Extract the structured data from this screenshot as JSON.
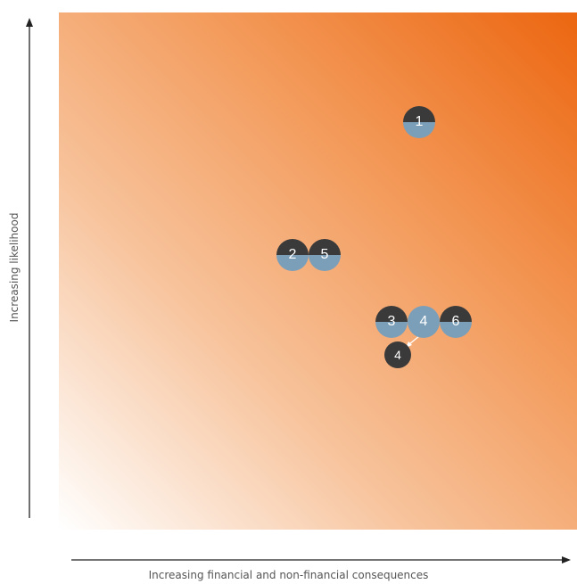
{
  "axes": {
    "y_label": "Increasing likelihood",
    "x_label": "Increasing financial and non-financial consequences"
  },
  "colors": {
    "gradient_low": "#ffffff",
    "gradient_high": "#ec6610",
    "marker_dark": "#3a3a3a",
    "marker_light": "#7b9fb9",
    "arrow": "#ffffff"
  },
  "markers": [
    {
      "label": "1",
      "style": "split"
    },
    {
      "label": "2",
      "style": "split"
    },
    {
      "label": "5",
      "style": "split"
    },
    {
      "label": "3",
      "style": "split"
    },
    {
      "label": "4",
      "style": "light"
    },
    {
      "label": "6",
      "style": "split"
    },
    {
      "label": "4",
      "style": "dark"
    }
  ],
  "movements": [
    {
      "from_marker": 4,
      "to_marker": 6
    }
  ]
}
